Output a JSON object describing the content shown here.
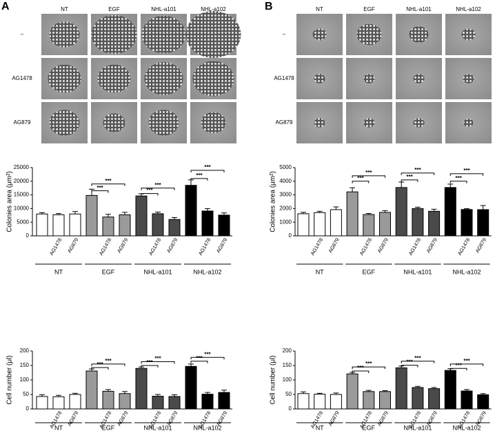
{
  "panels": [
    {
      "label": "A",
      "image_columns": [
        "NT",
        "EGF",
        "NHL-a101",
        "NHL-a102"
      ],
      "image_rows": [
        "–",
        "AG1478",
        "AG879"
      ]
    },
    {
      "label": "B",
      "image_columns": [
        "NT",
        "EGF",
        "NHL-a101",
        "NHL-a102"
      ],
      "image_rows": [
        "–",
        "AG1478",
        "AG879"
      ]
    }
  ],
  "chart_data": [
    {
      "type": "bar",
      "ylabel": "Colonies area (μm²)",
      "groups": [
        "NT",
        "EGF",
        "NHL-a101",
        "NHL-a102"
      ],
      "group_colors": [
        "#ffffff",
        "#9a9a9a",
        "#4a4a4a",
        "#000000"
      ],
      "categories": [
        null,
        "AG1478",
        "AG879",
        null,
        "AG1478",
        "AG879",
        null,
        "AG1478",
        "AG879",
        null,
        "AG1478",
        "AG879"
      ],
      "values": [
        8000,
        7700,
        8000,
        14800,
        6900,
        7700,
        14600,
        8100,
        6000,
        18500,
        9100,
        7600
      ],
      "errors": [
        500,
        500,
        900,
        2300,
        1000,
        900,
        800,
        600,
        700,
        2000,
        900,
        800
      ],
      "ylim": [
        0,
        25000
      ],
      "yticks": [
        0,
        5000,
        10000,
        15000,
        20000,
        25000
      ],
      "annotations": [
        {
          "label": "***",
          "from": 3,
          "to": 4,
          "y": 16500
        },
        {
          "label": "***",
          "from": 3,
          "to": 5,
          "y": 19000
        },
        {
          "label": "***",
          "from": 6,
          "to": 7,
          "y": 15500
        },
        {
          "label": "***",
          "from": 6,
          "to": 8,
          "y": 17500
        },
        {
          "label": "***",
          "from": 9,
          "to": 10,
          "y": 21000
        },
        {
          "label": "***",
          "from": 9,
          "to": 11,
          "y": 24000
        }
      ]
    },
    {
      "type": "bar",
      "ylabel": "Cell number (μl)",
      "groups": [
        "NT",
        "EGF",
        "NHL-a101",
        "NHL-a102"
      ],
      "group_colors": [
        "#ffffff",
        "#9a9a9a",
        "#4a4a4a",
        "#000000"
      ],
      "categories": [
        null,
        "AG1478",
        "AG879",
        null,
        "AG1478",
        "AG879",
        null,
        "AG1478",
        "AG879",
        null,
        "AG1478",
        "AG879"
      ],
      "values": [
        43,
        42,
        50,
        131,
        61,
        53,
        140,
        44,
        43,
        147,
        51,
        57
      ],
      "errors": [
        6,
        5,
        4,
        7,
        6,
        7,
        5,
        6,
        6,
        8,
        6,
        8
      ],
      "ylim": [
        0,
        200
      ],
      "yticks": [
        0,
        50,
        100,
        150,
        200
      ],
      "annotations": [
        {
          "label": "***",
          "from": 3,
          "to": 4,
          "y": 143
        },
        {
          "label": "***",
          "from": 3,
          "to": 5,
          "y": 155
        },
        {
          "label": "***",
          "from": 6,
          "to": 7,
          "y": 150
        },
        {
          "label": "***",
          "from": 6,
          "to": 8,
          "y": 163
        },
        {
          "label": "***",
          "from": 9,
          "to": 10,
          "y": 165
        },
        {
          "label": "***",
          "from": 9,
          "to": 11,
          "y": 178
        }
      ]
    },
    {
      "type": "bar",
      "ylabel": "Colonies area (μm²)",
      "groups": [
        "NT",
        "EGF",
        "NHL-a101",
        "NHL-a102"
      ],
      "group_colors": [
        "#ffffff",
        "#9a9a9a",
        "#4a4a4a",
        "#000000"
      ],
      "categories": [
        null,
        "AG1478",
        "AG879",
        null,
        "AG1478",
        "AG879",
        null,
        "AG1478",
        "AG879",
        null,
        "AG1478",
        "AG879"
      ],
      "values": [
        1620,
        1700,
        1920,
        3220,
        1560,
        1720,
        3540,
        2000,
        1800,
        3540,
        1930,
        1920
      ],
      "errors": [
        100,
        100,
        200,
        300,
        80,
        130,
        400,
        100,
        150,
        250,
        60,
        300
      ],
      "ylim": [
        0,
        5000
      ],
      "yticks": [
        0,
        1000,
        2000,
        3000,
        4000,
        5000
      ],
      "annotations": [
        {
          "label": "***",
          "from": 3,
          "to": 4,
          "y": 4000
        },
        {
          "label": "***",
          "from": 3,
          "to": 5,
          "y": 4400
        },
        {
          "label": "***",
          "from": 6,
          "to": 7,
          "y": 4100
        },
        {
          "label": "***",
          "from": 6,
          "to": 8,
          "y": 4600
        },
        {
          "label": "***",
          "from": 9,
          "to": 10,
          "y": 4000
        },
        {
          "label": "***",
          "from": 9,
          "to": 11,
          "y": 4550
        }
      ]
    },
    {
      "type": "bar",
      "ylabel": "Cell number (μl)",
      "groups": [
        "NT",
        "EGF",
        "NHL-a101",
        "NHL-a102"
      ],
      "group_colors": [
        "#ffffff",
        "#9a9a9a",
        "#4a4a4a",
        "#000000"
      ],
      "categories": [
        null,
        "AG1478",
        "AG879",
        null,
        "AG1478",
        "AG879",
        null,
        "AG1478",
        "AG879",
        null,
        "AG1478",
        "AG879"
      ],
      "values": [
        53,
        51,
        50,
        121,
        60,
        60,
        142,
        74,
        70,
        133,
        62,
        49
      ],
      "errors": [
        6,
        3,
        5,
        5,
        4,
        3,
        6,
        4,
        4,
        6,
        5,
        4
      ],
      "ylim": [
        0,
        200
      ],
      "yticks": [
        0,
        50,
        100,
        150,
        200
      ],
      "annotations": [
        {
          "label": "***",
          "from": 3,
          "to": 4,
          "y": 131
        },
        {
          "label": "***",
          "from": 3,
          "to": 5,
          "y": 145
        },
        {
          "label": "***",
          "from": 6,
          "to": 7,
          "y": 151
        },
        {
          "label": "***",
          "from": 6,
          "to": 8,
          "y": 165
        },
        {
          "label": "***",
          "from": 9,
          "to": 10,
          "y": 140
        },
        {
          "label": "***",
          "from": 9,
          "to": 11,
          "y": 155
        }
      ]
    }
  ]
}
